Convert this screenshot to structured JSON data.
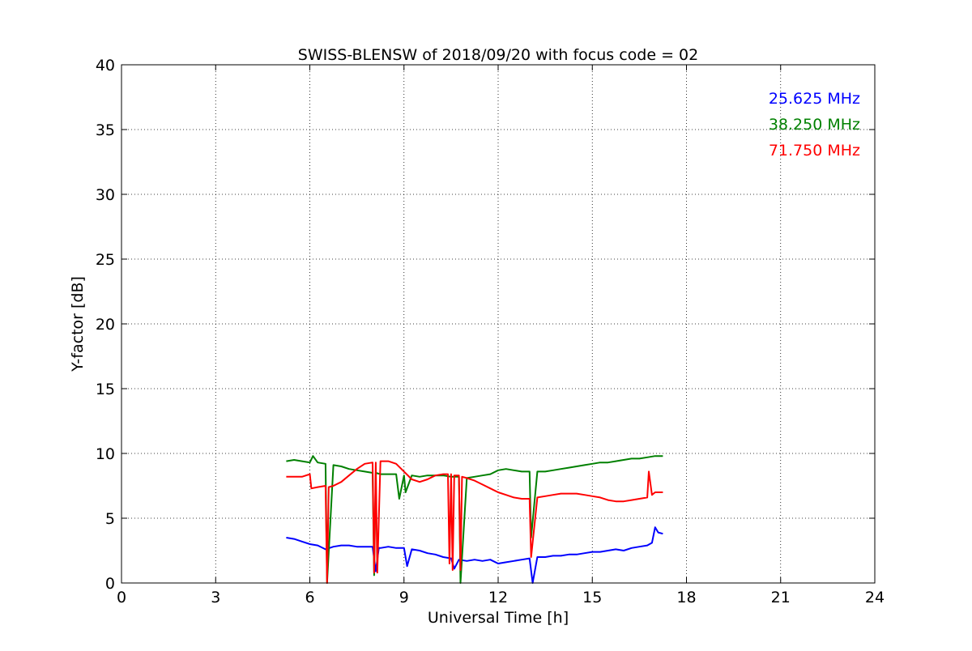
{
  "chart_data": {
    "type": "line",
    "title": "SWISS-BLENSW of 2018/09/20 with focus code = 02",
    "xlabel": "Universal Time [h]",
    "ylabel": "Y-factor [dB]",
    "xlim": [
      0,
      24
    ],
    "ylim": [
      0,
      40
    ],
    "xticks": [
      0,
      3,
      6,
      9,
      12,
      15,
      18,
      21,
      24
    ],
    "yticks": [
      0,
      5,
      10,
      15,
      20,
      25,
      30,
      35,
      40
    ],
    "grid": true,
    "legend_position": "top-right",
    "series": [
      {
        "name": "25.625 MHz",
        "color": "#0000ff",
        "x": [
          5.25,
          5.5,
          5.75,
          6.0,
          6.25,
          6.5,
          6.75,
          7.0,
          7.25,
          7.5,
          7.75,
          8.0,
          8.1,
          8.2,
          8.25,
          8.5,
          8.75,
          9.0,
          9.1,
          9.25,
          9.5,
          9.75,
          10.0,
          10.25,
          10.5,
          10.6,
          10.75,
          11.0,
          11.25,
          11.5,
          11.75,
          12.0,
          12.25,
          12.5,
          12.75,
          13.0,
          13.1,
          13.25,
          13.5,
          13.75,
          14.0,
          14.25,
          14.5,
          14.75,
          15.0,
          15.25,
          15.5,
          15.75,
          16.0,
          16.25,
          16.5,
          16.75,
          16.9,
          17.0,
          17.1,
          17.25
        ],
        "y": [
          3.5,
          3.4,
          3.2,
          3.0,
          2.9,
          2.6,
          2.8,
          2.9,
          2.9,
          2.8,
          2.8,
          2.8,
          0.9,
          2.7,
          2.7,
          2.8,
          2.7,
          2.7,
          1.3,
          2.6,
          2.5,
          2.3,
          2.2,
          2.0,
          1.9,
          1.1,
          1.8,
          1.7,
          1.8,
          1.7,
          1.8,
          1.5,
          1.6,
          1.7,
          1.8,
          1.9,
          0.0,
          2.0,
          2.0,
          2.1,
          2.1,
          2.2,
          2.2,
          2.3,
          2.4,
          2.4,
          2.5,
          2.6,
          2.5,
          2.7,
          2.8,
          2.9,
          3.1,
          4.3,
          3.9,
          3.8
        ]
      },
      {
        "name": "38.250 MHz",
        "color": "#008000",
        "x": [
          5.25,
          5.5,
          5.75,
          6.0,
          6.1,
          6.25,
          6.5,
          6.55,
          6.75,
          7.0,
          7.25,
          7.5,
          7.75,
          8.0,
          8.05,
          8.1,
          8.25,
          8.5,
          8.75,
          8.85,
          9.0,
          9.05,
          9.25,
          9.5,
          9.75,
          10.0,
          10.25,
          10.5,
          10.75,
          10.8,
          11.0,
          11.25,
          11.5,
          11.75,
          12.0,
          12.25,
          12.5,
          12.75,
          13.0,
          13.05,
          13.25,
          13.5,
          13.75,
          14.0,
          14.25,
          14.5,
          14.75,
          15.0,
          15.25,
          15.5,
          15.75,
          16.0,
          16.25,
          16.5,
          16.75,
          17.0,
          17.25
        ],
        "y": [
          9.4,
          9.5,
          9.4,
          9.3,
          9.8,
          9.3,
          9.2,
          0.0,
          9.1,
          9.0,
          8.8,
          8.7,
          8.6,
          8.5,
          0.6,
          8.5,
          8.4,
          8.4,
          8.4,
          6.5,
          8.3,
          7.0,
          8.3,
          8.2,
          8.3,
          8.3,
          8.3,
          8.2,
          8.2,
          0.0,
          8.1,
          8.2,
          8.3,
          8.4,
          8.7,
          8.8,
          8.7,
          8.6,
          8.6,
          3.5,
          8.6,
          8.6,
          8.7,
          8.8,
          8.9,
          9.0,
          9.1,
          9.2,
          9.3,
          9.3,
          9.4,
          9.5,
          9.6,
          9.6,
          9.7,
          9.8,
          9.8
        ]
      },
      {
        "name": "71.750 MHz",
        "color": "#ff0000",
        "x": [
          5.25,
          5.5,
          5.75,
          6.0,
          6.05,
          6.25,
          6.5,
          6.55,
          6.6,
          6.75,
          7.0,
          7.25,
          7.5,
          7.75,
          8.0,
          8.05,
          8.1,
          8.15,
          8.25,
          8.5,
          8.75,
          9.0,
          9.25,
          9.5,
          9.75,
          10.0,
          10.25,
          10.4,
          10.45,
          10.5,
          10.55,
          10.6,
          10.75,
          10.8,
          10.85,
          11.0,
          11.25,
          11.5,
          11.75,
          12.0,
          12.25,
          12.5,
          12.75,
          13.0,
          13.05,
          13.25,
          13.5,
          13.75,
          14.0,
          14.25,
          14.5,
          14.75,
          15.0,
          15.25,
          15.5,
          15.75,
          16.0,
          16.25,
          16.5,
          16.75,
          16.8,
          16.9,
          17.0,
          17.25
        ],
        "y": [
          8.2,
          8.2,
          8.2,
          8.4,
          7.3,
          7.4,
          7.5,
          0.0,
          7.4,
          7.5,
          7.8,
          8.3,
          8.8,
          9.2,
          9.3,
          0.8,
          9.3,
          0.8,
          9.4,
          9.4,
          9.2,
          8.6,
          8.0,
          7.8,
          8.0,
          8.3,
          8.4,
          8.4,
          1.5,
          8.4,
          1.0,
          8.3,
          8.3,
          1.0,
          8.2,
          8.1,
          7.9,
          7.6,
          7.3,
          7.0,
          6.8,
          6.6,
          6.5,
          6.5,
          2.0,
          6.6,
          6.7,
          6.8,
          6.9,
          6.9,
          6.9,
          6.8,
          6.7,
          6.6,
          6.4,
          6.3,
          6.3,
          6.4,
          6.5,
          6.6,
          8.6,
          6.8,
          7.0,
          7.0
        ]
      }
    ]
  }
}
